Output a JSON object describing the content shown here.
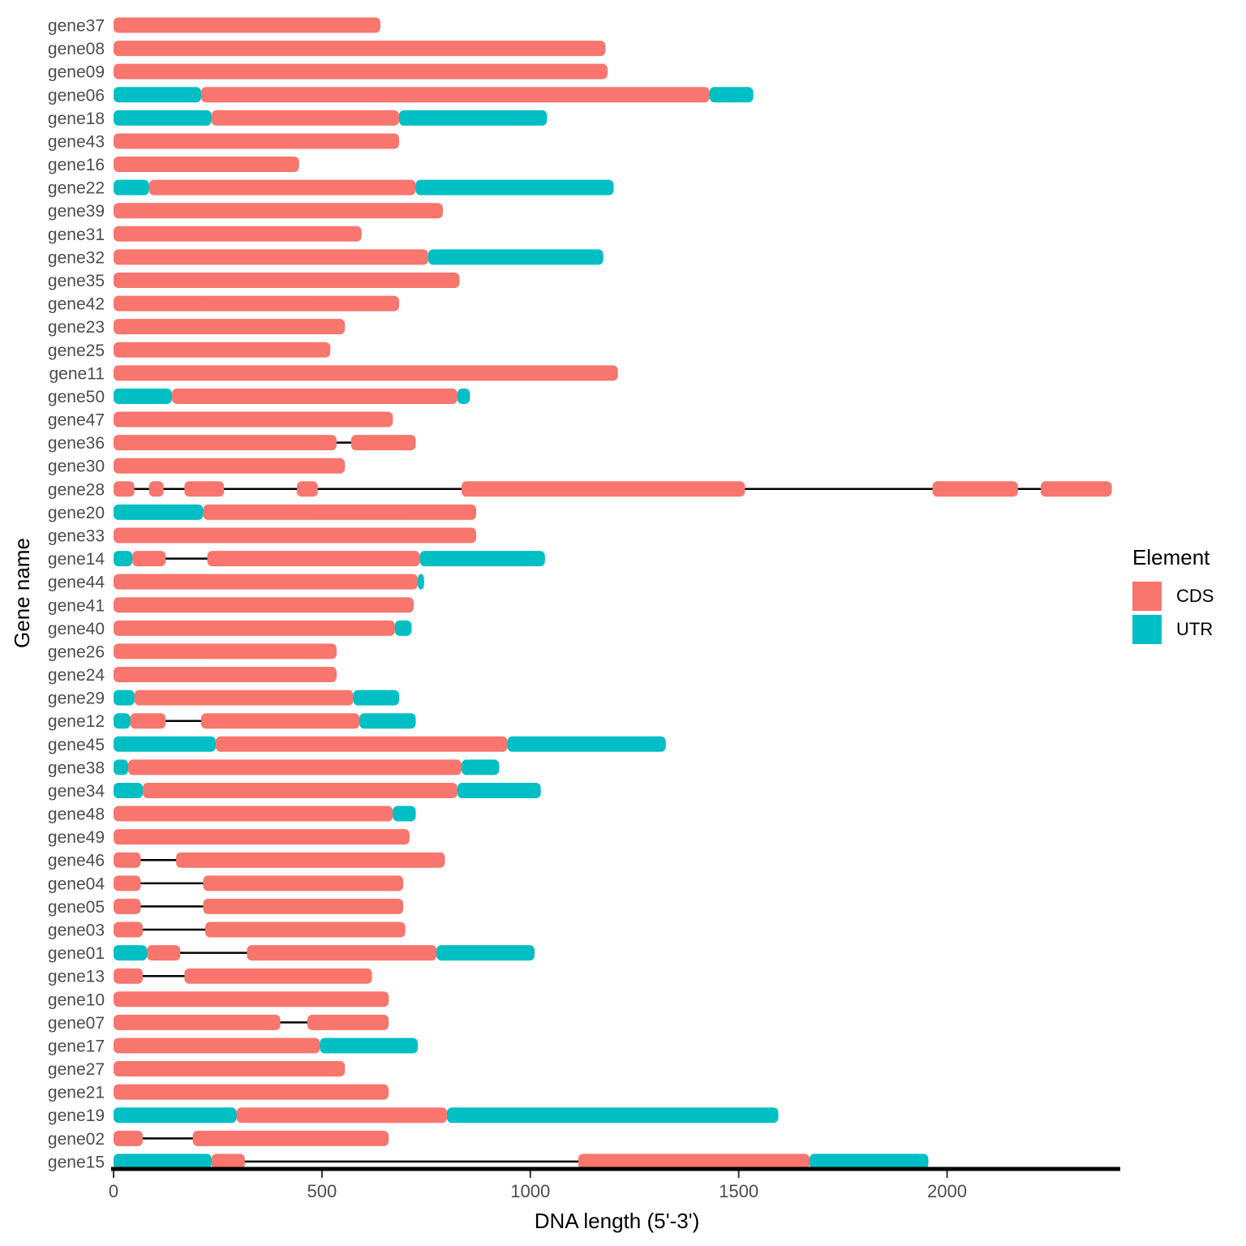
{
  "chart_data": {
    "type": "bar",
    "subtype": "horizontal-gene-structure",
    "title": "",
    "xlabel": "DNA length (5'-3')",
    "ylabel": "Gene name",
    "xlim": [
      0,
      2415
    ],
    "x_ticks": [
      0,
      500,
      1000,
      1500,
      2000
    ],
    "grid": "off",
    "legend": {
      "title": "Element",
      "position": "right",
      "entries": [
        {
          "label": "CDS",
          "color": "#F8766D"
        },
        {
          "label": "UTR",
          "color": "#00BFC4"
        }
      ]
    },
    "intron_line_color": "#000000",
    "axis_line_color": "#000000",
    "genes": [
      {
        "name": "gene37",
        "segments": [
          {
            "element": "CDS",
            "start": 0,
            "end": 640
          }
        ]
      },
      {
        "name": "gene08",
        "segments": [
          {
            "element": "CDS",
            "start": 0,
            "end": 1180
          }
        ]
      },
      {
        "name": "gene09",
        "segments": [
          {
            "element": "CDS",
            "start": 0,
            "end": 1185
          }
        ]
      },
      {
        "name": "gene06",
        "segments": [
          {
            "element": "UTR",
            "start": 0,
            "end": 210
          },
          {
            "element": "CDS",
            "start": 210,
            "end": 1430
          },
          {
            "element": "UTR",
            "start": 1430,
            "end": 1535
          }
        ]
      },
      {
        "name": "gene18",
        "segments": [
          {
            "element": "UTR",
            "start": 0,
            "end": 235
          },
          {
            "element": "CDS",
            "start": 235,
            "end": 685
          },
          {
            "element": "UTR",
            "start": 685,
            "end": 1040
          }
        ]
      },
      {
        "name": "gene43",
        "segments": [
          {
            "element": "CDS",
            "start": 0,
            "end": 685
          }
        ]
      },
      {
        "name": "gene16",
        "segments": [
          {
            "element": "CDS",
            "start": 0,
            "end": 445
          }
        ]
      },
      {
        "name": "gene22",
        "segments": [
          {
            "element": "UTR",
            "start": 0,
            "end": 85
          },
          {
            "element": "CDS",
            "start": 85,
            "end": 725
          },
          {
            "element": "UTR",
            "start": 725,
            "end": 1200
          }
        ]
      },
      {
        "name": "gene39",
        "segments": [
          {
            "element": "CDS",
            "start": 0,
            "end": 790
          }
        ]
      },
      {
        "name": "gene31",
        "segments": [
          {
            "element": "CDS",
            "start": 0,
            "end": 595
          }
        ]
      },
      {
        "name": "gene32",
        "segments": [
          {
            "element": "CDS",
            "start": 0,
            "end": 755
          },
          {
            "element": "UTR",
            "start": 755,
            "end": 1175
          }
        ]
      },
      {
        "name": "gene35",
        "segments": [
          {
            "element": "CDS",
            "start": 0,
            "end": 830
          }
        ]
      },
      {
        "name": "gene42",
        "segments": [
          {
            "element": "CDS",
            "start": 0,
            "end": 685
          }
        ]
      },
      {
        "name": "gene23",
        "segments": [
          {
            "element": "CDS",
            "start": 0,
            "end": 555
          }
        ]
      },
      {
        "name": "gene25",
        "segments": [
          {
            "element": "CDS",
            "start": 0,
            "end": 520
          }
        ]
      },
      {
        "name": "gene11",
        "segments": [
          {
            "element": "CDS",
            "start": 0,
            "end": 1210
          }
        ]
      },
      {
        "name": "gene50",
        "segments": [
          {
            "element": "UTR",
            "start": 0,
            "end": 140
          },
          {
            "element": "CDS",
            "start": 140,
            "end": 825
          },
          {
            "element": "UTR",
            "start": 825,
            "end": 855
          }
        ]
      },
      {
        "name": "gene47",
        "segments": [
          {
            "element": "CDS",
            "start": 0,
            "end": 670
          }
        ]
      },
      {
        "name": "gene36",
        "segments": [
          {
            "element": "CDS",
            "start": 0,
            "end": 535
          },
          {
            "element": "CDS",
            "start": 570,
            "end": 725
          }
        ]
      },
      {
        "name": "gene30",
        "segments": [
          {
            "element": "CDS",
            "start": 0,
            "end": 555
          }
        ]
      },
      {
        "name": "gene28",
        "segments": [
          {
            "element": "CDS",
            "start": 0,
            "end": 50
          },
          {
            "element": "CDS",
            "start": 85,
            "end": 120
          },
          {
            "element": "CDS",
            "start": 170,
            "end": 265
          },
          {
            "element": "CDS",
            "start": 440,
            "end": 490
          },
          {
            "element": "CDS",
            "start": 835,
            "end": 1515
          },
          {
            "element": "CDS",
            "start": 1965,
            "end": 2170
          },
          {
            "element": "CDS",
            "start": 2225,
            "end": 2395
          }
        ]
      },
      {
        "name": "gene20",
        "segments": [
          {
            "element": "UTR",
            "start": 0,
            "end": 215
          },
          {
            "element": "CDS",
            "start": 215,
            "end": 870
          }
        ]
      },
      {
        "name": "gene33",
        "segments": [
          {
            "element": "CDS",
            "start": 0,
            "end": 870
          }
        ]
      },
      {
        "name": "gene14",
        "segments": [
          {
            "element": "UTR",
            "start": 0,
            "end": 45
          },
          {
            "element": "CDS",
            "start": 45,
            "end": 125
          },
          {
            "element": "CDS",
            "start": 225,
            "end": 735
          },
          {
            "element": "UTR",
            "start": 735,
            "end": 1035
          }
        ]
      },
      {
        "name": "gene44",
        "segments": [
          {
            "element": "CDS",
            "start": 0,
            "end": 730
          },
          {
            "element": "UTR",
            "start": 730,
            "end": 745
          }
        ]
      },
      {
        "name": "gene41",
        "segments": [
          {
            "element": "CDS",
            "start": 0,
            "end": 720
          }
        ]
      },
      {
        "name": "gene40",
        "segments": [
          {
            "element": "CDS",
            "start": 0,
            "end": 675
          },
          {
            "element": "UTR",
            "start": 675,
            "end": 715
          }
        ]
      },
      {
        "name": "gene26",
        "segments": [
          {
            "element": "CDS",
            "start": 0,
            "end": 535
          }
        ]
      },
      {
        "name": "gene24",
        "segments": [
          {
            "element": "CDS",
            "start": 0,
            "end": 535
          }
        ]
      },
      {
        "name": "gene29",
        "segments": [
          {
            "element": "UTR",
            "start": 0,
            "end": 50
          },
          {
            "element": "CDS",
            "start": 50,
            "end": 575
          },
          {
            "element": "UTR",
            "start": 575,
            "end": 685
          }
        ]
      },
      {
        "name": "gene12",
        "segments": [
          {
            "element": "UTR",
            "start": 0,
            "end": 40
          },
          {
            "element": "CDS",
            "start": 40,
            "end": 125
          },
          {
            "element": "CDS",
            "start": 210,
            "end": 590
          },
          {
            "element": "UTR",
            "start": 590,
            "end": 725
          }
        ]
      },
      {
        "name": "gene45",
        "segments": [
          {
            "element": "UTR",
            "start": 0,
            "end": 245
          },
          {
            "element": "CDS",
            "start": 245,
            "end": 945
          },
          {
            "element": "UTR",
            "start": 945,
            "end": 1325
          }
        ]
      },
      {
        "name": "gene38",
        "segments": [
          {
            "element": "UTR",
            "start": 0,
            "end": 35
          },
          {
            "element": "CDS",
            "start": 35,
            "end": 835
          },
          {
            "element": "UTR",
            "start": 835,
            "end": 925
          }
        ]
      },
      {
        "name": "gene34",
        "segments": [
          {
            "element": "UTR",
            "start": 0,
            "end": 70
          },
          {
            "element": "CDS",
            "start": 70,
            "end": 825
          },
          {
            "element": "UTR",
            "start": 825,
            "end": 1025
          }
        ]
      },
      {
        "name": "gene48",
        "segments": [
          {
            "element": "CDS",
            "start": 0,
            "end": 670
          },
          {
            "element": "UTR",
            "start": 670,
            "end": 725
          }
        ]
      },
      {
        "name": "gene49",
        "segments": [
          {
            "element": "CDS",
            "start": 0,
            "end": 710
          }
        ]
      },
      {
        "name": "gene46",
        "segments": [
          {
            "element": "CDS",
            "start": 0,
            "end": 65
          },
          {
            "element": "CDS",
            "start": 150,
            "end": 795
          }
        ]
      },
      {
        "name": "gene04",
        "segments": [
          {
            "element": "CDS",
            "start": 0,
            "end": 65
          },
          {
            "element": "CDS",
            "start": 215,
            "end": 695
          }
        ]
      },
      {
        "name": "gene05",
        "segments": [
          {
            "element": "CDS",
            "start": 0,
            "end": 65
          },
          {
            "element": "CDS",
            "start": 215,
            "end": 695
          }
        ]
      },
      {
        "name": "gene03",
        "segments": [
          {
            "element": "CDS",
            "start": 0,
            "end": 70
          },
          {
            "element": "CDS",
            "start": 220,
            "end": 700
          }
        ]
      },
      {
        "name": "gene01",
        "segments": [
          {
            "element": "UTR",
            "start": 0,
            "end": 80
          },
          {
            "element": "CDS",
            "start": 80,
            "end": 160
          },
          {
            "element": "CDS",
            "start": 320,
            "end": 775
          },
          {
            "element": "UTR",
            "start": 775,
            "end": 1010
          }
        ]
      },
      {
        "name": "gene13",
        "segments": [
          {
            "element": "CDS",
            "start": 0,
            "end": 70
          },
          {
            "element": "CDS",
            "start": 170,
            "end": 620
          }
        ]
      },
      {
        "name": "gene10",
        "segments": [
          {
            "element": "CDS",
            "start": 0,
            "end": 660
          }
        ]
      },
      {
        "name": "gene07",
        "segments": [
          {
            "element": "CDS",
            "start": 0,
            "end": 400
          },
          {
            "element": "CDS",
            "start": 465,
            "end": 660
          }
        ]
      },
      {
        "name": "gene17",
        "segments": [
          {
            "element": "CDS",
            "start": 0,
            "end": 495
          },
          {
            "element": "UTR",
            "start": 495,
            "end": 730
          }
        ]
      },
      {
        "name": "gene27",
        "segments": [
          {
            "element": "CDS",
            "start": 0,
            "end": 555
          }
        ]
      },
      {
        "name": "gene21",
        "segments": [
          {
            "element": "CDS",
            "start": 0,
            "end": 660
          }
        ]
      },
      {
        "name": "gene19",
        "segments": [
          {
            "element": "UTR",
            "start": 0,
            "end": 295
          },
          {
            "element": "CDS",
            "start": 295,
            "end": 800
          },
          {
            "element": "UTR",
            "start": 800,
            "end": 1595
          }
        ]
      },
      {
        "name": "gene02",
        "segments": [
          {
            "element": "CDS",
            "start": 0,
            "end": 70
          },
          {
            "element": "CDS",
            "start": 190,
            "end": 660
          }
        ]
      },
      {
        "name": "gene15",
        "segments": [
          {
            "element": "UTR",
            "start": 0,
            "end": 235
          },
          {
            "element": "CDS",
            "start": 235,
            "end": 315
          },
          {
            "element": "CDS",
            "start": 1115,
            "end": 1670
          },
          {
            "element": "UTR",
            "start": 1670,
            "end": 1955
          }
        ]
      }
    ]
  }
}
